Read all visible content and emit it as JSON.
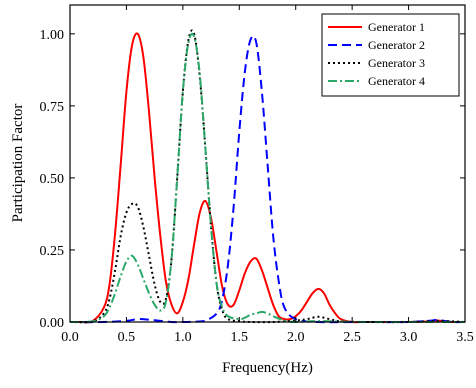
{
  "chart_data": {
    "type": "line",
    "title": "",
    "xlabel": "Frequency(Hz)",
    "ylabel": "Participation Factor",
    "xlim": [
      0.0,
      3.5
    ],
    "ylim": [
      0.0,
      1.1
    ],
    "xticks": [
      "0.0",
      "0.5",
      "1.0",
      "1.5",
      "2.0",
      "2.5",
      "3.0",
      "3.5"
    ],
    "yticks": [
      "0.00",
      "0.25",
      "0.50",
      "0.75",
      "1.00"
    ],
    "grid": false,
    "legend_position": "top-right",
    "series": [
      {
        "name": "Generator 1",
        "color": "#ff0000",
        "style": "solid",
        "x": [
          0.0,
          0.1,
          0.2,
          0.3,
          0.35,
          0.4,
          0.45,
          0.5,
          0.55,
          0.6,
          0.65,
          0.7,
          0.75,
          0.8,
          0.85,
          0.9,
          0.95,
          1.0,
          1.05,
          1.1,
          1.15,
          1.2,
          1.25,
          1.3,
          1.35,
          1.4,
          1.45,
          1.5,
          1.55,
          1.6,
          1.65,
          1.7,
          1.75,
          1.8,
          1.85,
          1.9,
          1.95,
          2.0,
          2.05,
          2.1,
          2.15,
          2.2,
          2.25,
          2.3,
          2.35,
          2.4,
          2.5,
          2.6,
          2.8,
          3.0,
          3.2,
          3.25,
          3.3,
          3.4,
          3.5
        ],
        "y": [
          0.0,
          0.0,
          0.003,
          0.05,
          0.13,
          0.31,
          0.55,
          0.8,
          0.96,
          1.0,
          0.92,
          0.73,
          0.5,
          0.3,
          0.14,
          0.06,
          0.03,
          0.07,
          0.15,
          0.27,
          0.38,
          0.42,
          0.36,
          0.24,
          0.12,
          0.06,
          0.06,
          0.11,
          0.17,
          0.21,
          0.22,
          0.18,
          0.12,
          0.06,
          0.02,
          0.01,
          0.01,
          0.02,
          0.04,
          0.07,
          0.1,
          0.115,
          0.1,
          0.06,
          0.03,
          0.01,
          0.0,
          0.0,
          0.0,
          0.0,
          0.002,
          0.005,
          0.003,
          0.0,
          0.0
        ]
      },
      {
        "name": "Generator 2",
        "color": "#0000ff",
        "style": "dashed",
        "x": [
          0.0,
          0.3,
          0.5,
          0.6,
          0.7,
          0.9,
          1.0,
          1.1,
          1.2,
          1.3,
          1.35,
          1.4,
          1.45,
          1.5,
          1.55,
          1.6,
          1.65,
          1.7,
          1.75,
          1.8,
          1.85,
          1.9,
          2.0,
          2.2,
          2.6,
          3.0,
          3.2,
          3.25,
          3.3,
          3.4,
          3.5
        ],
        "y": [
          0.0,
          0.0,
          0.004,
          0.01,
          0.008,
          0.0,
          0.0,
          0.001,
          0.005,
          0.03,
          0.08,
          0.2,
          0.4,
          0.66,
          0.87,
          0.98,
          0.97,
          0.8,
          0.55,
          0.3,
          0.14,
          0.05,
          0.01,
          0.0,
          0.0,
          0.0,
          0.005,
          0.008,
          0.005,
          0.0,
          0.0
        ]
      },
      {
        "name": "Generator 3",
        "color": "#000000",
        "style": "dotted",
        "x": [
          0.0,
          0.2,
          0.3,
          0.35,
          0.4,
          0.45,
          0.5,
          0.55,
          0.6,
          0.65,
          0.7,
          0.75,
          0.8,
          0.85,
          0.9,
          0.95,
          1.0,
          1.05,
          1.1,
          1.15,
          1.2,
          1.25,
          1.3,
          1.35,
          1.4,
          1.5,
          1.6,
          1.8,
          2.0,
          2.1,
          2.2,
          2.3,
          2.4,
          2.6,
          3.0,
          3.25,
          3.5
        ],
        "y": [
          0.0,
          0.002,
          0.03,
          0.08,
          0.18,
          0.3,
          0.38,
          0.41,
          0.4,
          0.33,
          0.23,
          0.13,
          0.07,
          0.08,
          0.22,
          0.5,
          0.8,
          0.98,
          1.0,
          0.85,
          0.6,
          0.33,
          0.13,
          0.04,
          0.01,
          0.003,
          0.0,
          0.0,
          0.005,
          0.01,
          0.018,
          0.01,
          0.002,
          0.0,
          0.0,
          0.004,
          0.0
        ]
      },
      {
        "name": "Generator 4",
        "color": "#2aa868",
        "style": "dashdot",
        "x": [
          0.0,
          0.2,
          0.3,
          0.35,
          0.4,
          0.45,
          0.5,
          0.55,
          0.6,
          0.65,
          0.7,
          0.75,
          0.8,
          0.85,
          0.9,
          0.95,
          1.0,
          1.05,
          1.1,
          1.15,
          1.2,
          1.25,
          1.3,
          1.35,
          1.4,
          1.5,
          1.55,
          1.6,
          1.65,
          1.7,
          1.75,
          1.8,
          1.9,
          2.0,
          2.2,
          2.6,
          3.0,
          3.5
        ],
        "y": [
          0.0,
          0.002,
          0.02,
          0.05,
          0.1,
          0.16,
          0.21,
          0.23,
          0.2,
          0.15,
          0.1,
          0.06,
          0.04,
          0.07,
          0.22,
          0.5,
          0.8,
          0.97,
          0.99,
          0.86,
          0.6,
          0.33,
          0.13,
          0.05,
          0.02,
          0.01,
          0.015,
          0.025,
          0.03,
          0.035,
          0.03,
          0.02,
          0.005,
          0.0,
          0.003,
          0.0,
          0.0,
          0.0
        ]
      }
    ]
  }
}
